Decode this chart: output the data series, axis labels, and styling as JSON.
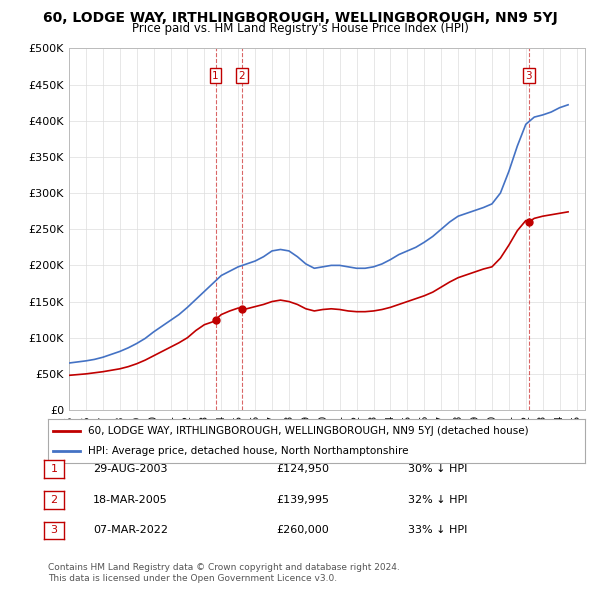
{
  "title": "60, LODGE WAY, IRTHLINGBOROUGH, WELLINGBOROUGH, NN9 5YJ",
  "subtitle": "Price paid vs. HM Land Registry's House Price Index (HPI)",
  "hpi_color": "#4472C4",
  "price_color": "#C00000",
  "transactions": [
    {
      "num": 1,
      "date": "29-AUG-2003",
      "price": 124950,
      "year": 2003.66,
      "pct": "30% ↓ HPI"
    },
    {
      "num": 2,
      "date": "18-MAR-2005",
      "price": 139995,
      "year": 2005.21,
      "pct": "32% ↓ HPI"
    },
    {
      "num": 3,
      "date": "07-MAR-2022",
      "price": 260000,
      "year": 2022.18,
      "pct": "33% ↓ HPI"
    }
  ],
  "legend_property_label": "60, LODGE WAY, IRTHLINGBOROUGH, WELLINGBOROUGH, NN9 5YJ (detached house)",
  "legend_hpi_label": "HPI: Average price, detached house, North Northamptonshire",
  "footer_line1": "Contains HM Land Registry data © Crown copyright and database right 2024.",
  "footer_line2": "This data is licensed under the Open Government Licence v3.0.",
  "ylim": [
    0,
    500000
  ],
  "xlim_start": 1995,
  "xlim_end": 2025.5,
  "hpi_years": [
    1995,
    1995.5,
    1996,
    1996.5,
    1997,
    1997.5,
    1998,
    1998.5,
    1999,
    1999.5,
    2000,
    2000.5,
    2001,
    2001.5,
    2002,
    2002.5,
    2003,
    2003.5,
    2004,
    2004.5,
    2005,
    2005.5,
    2006,
    2006.5,
    2007,
    2007.5,
    2008,
    2008.5,
    2009,
    2009.5,
    2010,
    2010.5,
    2011,
    2011.5,
    2012,
    2012.5,
    2013,
    2013.5,
    2014,
    2014.5,
    2015,
    2015.5,
    2016,
    2016.5,
    2017,
    2017.5,
    2018,
    2018.5,
    2019,
    2019.5,
    2020,
    2020.5,
    2021,
    2021.5,
    2022,
    2022.5,
    2023,
    2023.5,
    2024,
    2024.5
  ],
  "hpi_values": [
    65000,
    66500,
    68000,
    70000,
    73000,
    77000,
    81000,
    86000,
    92000,
    99000,
    108000,
    116000,
    124000,
    132000,
    142000,
    153000,
    164000,
    175000,
    186000,
    192000,
    198000,
    202000,
    206000,
    212000,
    220000,
    222000,
    220000,
    212000,
    202000,
    196000,
    198000,
    200000,
    200000,
    198000,
    196000,
    196000,
    198000,
    202000,
    208000,
    215000,
    220000,
    225000,
    232000,
    240000,
    250000,
    260000,
    268000,
    272000,
    276000,
    280000,
    285000,
    300000,
    330000,
    365000,
    395000,
    405000,
    408000,
    412000,
    418000,
    422000
  ],
  "prop_years": [
    1995,
    1995.5,
    1996,
    1996.5,
    1997,
    1997.5,
    1998,
    1998.5,
    1999,
    1999.5,
    2000,
    2000.5,
    2001,
    2001.5,
    2002,
    2002.5,
    2003,
    2003.5,
    2003.66,
    2004,
    2004.5,
    2005,
    2005.21,
    2005.5,
    2006,
    2006.5,
    2007,
    2007.5,
    2008,
    2008.5,
    2009,
    2009.5,
    2010,
    2010.5,
    2011,
    2011.5,
    2012,
    2012.5,
    2013,
    2013.5,
    2014,
    2014.5,
    2015,
    2015.5,
    2016,
    2016.5,
    2017,
    2017.5,
    2018,
    2018.5,
    2019,
    2019.5,
    2020,
    2020.5,
    2021,
    2021.5,
    2022,
    2022.18,
    2022.5,
    2023,
    2023.5,
    2024,
    2024.5
  ],
  "prop_values": [
    48000,
    49000,
    50000,
    51500,
    53000,
    55000,
    57000,
    60000,
    64000,
    69000,
    75000,
    81000,
    87000,
    93000,
    100000,
    110000,
    118000,
    122000,
    124950,
    132000,
    137000,
    141000,
    139995,
    140000,
    143000,
    146000,
    150000,
    152000,
    150000,
    146000,
    140000,
    137000,
    139000,
    140000,
    139000,
    137000,
    136000,
    136000,
    137000,
    139000,
    142000,
    146000,
    150000,
    154000,
    158000,
    163000,
    170000,
    177000,
    183000,
    187000,
    191000,
    195000,
    198000,
    210000,
    228000,
    248000,
    262000,
    260000,
    265000,
    268000,
    270000,
    272000,
    274000
  ]
}
